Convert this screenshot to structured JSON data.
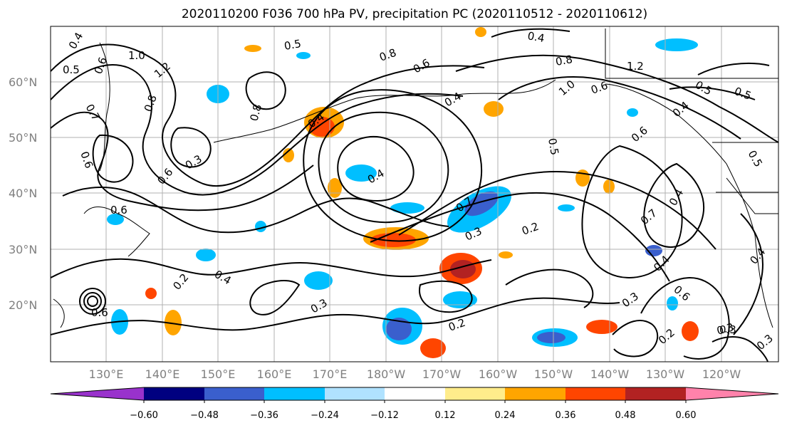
{
  "title": "2020110200 F036 700 hPa PV, precipitation PC (2020110512 - 2020110612)",
  "lat_labels": [
    "60°N",
    "50°N",
    "40°N",
    "30°N",
    "20°N"
  ],
  "lon_labels": [
    "130°E",
    "140°E",
    "150°E",
    "160°E",
    "170°E",
    "180°W",
    "170°W",
    "160°W",
    "150°W",
    "140°W",
    "130°W",
    "120°W"
  ],
  "colorbar": {
    "colors": [
      "#9932cc",
      "#000080",
      "#3a5fcd",
      "#00bfff",
      "#b0e2ff",
      "#ffffff",
      "#ffec8b",
      "#ffa500",
      "#ff4500",
      "#b22222",
      "#ff82ab"
    ],
    "tick_labels": [
      "−0.60",
      "−0.48",
      "−0.36",
      "−0.24",
      "−0.12",
      "0.12",
      "0.24",
      "0.36",
      "0.48",
      "0.60"
    ]
  },
  "contour_labels": [
    "0.4",
    "0.5",
    "1.0",
    "0.6",
    "1.2",
    "0.7",
    "0.8",
    "0.5",
    "0.6",
    "0.8",
    "0.4",
    "0.4",
    "0.8",
    "1.0",
    "0.6",
    "1.2",
    "0.5",
    "0.4",
    "0.5",
    "0.8",
    "0.3",
    "0.6",
    "0.4",
    "0.4",
    "0.7",
    "0.3",
    "0.2",
    "0.6",
    "0.7",
    "0.4",
    "0.2",
    "0.4",
    "0.3",
    "0.2",
    "0.6",
    "0.3",
    "0.4",
    "0.2",
    "0.3",
    "0.6",
    "0.5",
    "0.6",
    "0.4",
    "0.5",
    "0.3",
    "0.3",
    "0.6"
  ]
}
